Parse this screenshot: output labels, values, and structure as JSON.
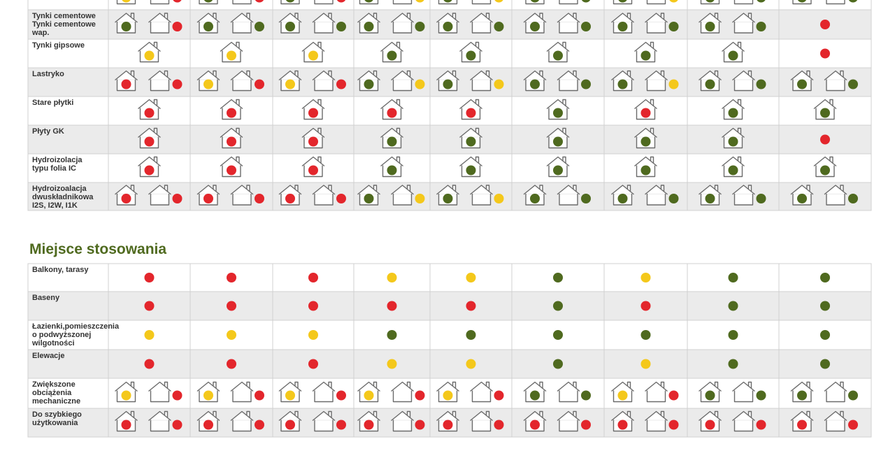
{
  "sections": [
    {
      "rows": [
        {
          "label": [],
          "cells": [
            {
              "in": "#f4c81b",
              "out": "#e3262c"
            },
            {
              "in": "#4f6a1f",
              "out": "#e3262c"
            },
            {
              "in": "#4f6a1f",
              "out": "#e3262c"
            },
            {
              "in": "#4f6a1f",
              "out": "#f4c81b"
            },
            {
              "in": "#4f6a1f",
              "out": "#f4c81b"
            },
            {
              "in": "#4f6a1f",
              "out": "#4f6a1f"
            },
            {
              "in": "#4f6a1f",
              "out": "#f4c81b"
            },
            {
              "in": "#4f6a1f",
              "out": "#4f6a1f"
            },
            {
              "in": "#4f6a1f",
              "out": "#4f6a1f"
            }
          ]
        },
        {
          "label": [
            "Tynki cementowe",
            "Tynki cementowe",
            "wap."
          ],
          "cells": [
            {
              "in": "#4f6a1f",
              "out": "#e3262c"
            },
            {
              "in": "#4f6a1f",
              "out": "#4f6a1f"
            },
            {
              "in": "#4f6a1f",
              "out": "#4f6a1f"
            },
            {
              "in": "#4f6a1f",
              "out": "#4f6a1f"
            },
            {
              "in": "#4f6a1f",
              "out": "#4f6a1f"
            },
            {
              "in": "#4f6a1f",
              "out": "#4f6a1f"
            },
            {
              "in": "#4f6a1f",
              "out": "#4f6a1f"
            },
            {
              "in": "#4f6a1f",
              "out": "#4f6a1f"
            },
            {
              "dot": "#e3262c"
            }
          ]
        },
        {
          "label": [
            "Tynki gipsowe"
          ],
          "cells": [
            {
              "in": "#f4c81b"
            },
            {
              "in": "#f4c81b"
            },
            {
              "in": "#f4c81b"
            },
            {
              "in": "#4f6a1f"
            },
            {
              "in": "#4f6a1f"
            },
            {
              "in": "#4f6a1f"
            },
            {
              "in": "#4f6a1f"
            },
            {
              "in": "#4f6a1f"
            },
            {
              "dot": "#e3262c"
            }
          ]
        },
        {
          "label": [
            "Lastryko"
          ],
          "cells": [
            {
              "in": "#e3262c",
              "out": "#e3262c"
            },
            {
              "in": "#f4c81b",
              "out": "#e3262c"
            },
            {
              "in": "#f4c81b",
              "out": "#e3262c"
            },
            {
              "in": "#4f6a1f",
              "out": "#f4c81b"
            },
            {
              "in": "#4f6a1f",
              "out": "#f4c81b"
            },
            {
              "in": "#4f6a1f",
              "out": "#4f6a1f"
            },
            {
              "in": "#4f6a1f",
              "out": "#f4c81b"
            },
            {
              "in": "#4f6a1f",
              "out": "#4f6a1f"
            },
            {
              "in": "#4f6a1f",
              "out": "#4f6a1f"
            }
          ]
        },
        {
          "label": [
            "Stare płytki"
          ],
          "cells": [
            {
              "in": "#e3262c"
            },
            {
              "in": "#e3262c"
            },
            {
              "in": "#e3262c"
            },
            {
              "in": "#e3262c"
            },
            {
              "in": "#e3262c"
            },
            {
              "in": "#4f6a1f"
            },
            {
              "in": "#e3262c"
            },
            {
              "in": "#4f6a1f"
            },
            {
              "in": "#4f6a1f"
            }
          ]
        },
        {
          "label": [
            "Płyty GK"
          ],
          "cells": [
            {
              "in": "#e3262c"
            },
            {
              "in": "#e3262c"
            },
            {
              "in": "#e3262c"
            },
            {
              "in": "#4f6a1f"
            },
            {
              "in": "#4f6a1f"
            },
            {
              "in": "#4f6a1f"
            },
            {
              "in": "#4f6a1f"
            },
            {
              "in": "#4f6a1f"
            },
            {
              "dot": "#e3262c"
            }
          ]
        },
        {
          "label": [
            "Hydroizolacja",
            "typu folia IC"
          ],
          "cells": [
            {
              "in": "#e3262c"
            },
            {
              "in": "#e3262c"
            },
            {
              "in": "#e3262c"
            },
            {
              "in": "#4f6a1f"
            },
            {
              "in": "#4f6a1f"
            },
            {
              "in": "#4f6a1f"
            },
            {
              "in": "#4f6a1f"
            },
            {
              "in": "#4f6a1f"
            },
            {
              "in": "#4f6a1f"
            }
          ]
        },
        {
          "label": [
            "Hydroizoalacja",
            "dwuskładnikowa",
            "I2S, I2W, I1K"
          ],
          "cells": [
            {
              "in": "#e3262c",
              "out": "#e3262c"
            },
            {
              "in": "#e3262c",
              "out": "#e3262c"
            },
            {
              "in": "#e3262c",
              "out": "#e3262c"
            },
            {
              "in": "#4f6a1f",
              "out": "#f4c81b"
            },
            {
              "in": "#4f6a1f",
              "out": "#f4c81b"
            },
            {
              "in": "#4f6a1f",
              "out": "#4f6a1f"
            },
            {
              "in": "#4f6a1f",
              "out": "#4f6a1f"
            },
            {
              "in": "#4f6a1f",
              "out": "#4f6a1f"
            },
            {
              "in": "#4f6a1f",
              "out": "#4f6a1f"
            }
          ]
        }
      ]
    },
    {
      "title": "Miejsce stosowania",
      "rows": [
        {
          "label": [
            "Balkony, tarasy"
          ],
          "cells": [
            {
              "dot": "#e3262c"
            },
            {
              "dot": "#e3262c"
            },
            {
              "dot": "#e3262c"
            },
            {
              "dot": "#f4c81b"
            },
            {
              "dot": "#f4c81b"
            },
            {
              "dot": "#4f6a1f"
            },
            {
              "dot": "#f4c81b"
            },
            {
              "dot": "#4f6a1f"
            },
            {
              "dot": "#4f6a1f"
            }
          ]
        },
        {
          "label": [
            "Baseny"
          ],
          "cells": [
            {
              "dot": "#e3262c"
            },
            {
              "dot": "#e3262c"
            },
            {
              "dot": "#e3262c"
            },
            {
              "dot": "#e3262c"
            },
            {
              "dot": "#e3262c"
            },
            {
              "dot": "#4f6a1f"
            },
            {
              "dot": "#e3262c"
            },
            {
              "dot": "#4f6a1f"
            },
            {
              "dot": "#4f6a1f"
            }
          ]
        },
        {
          "label": [
            "Łazienki,pomieszczenia",
            "o podwyższonej",
            "wilgotności"
          ],
          "cells": [
            {
              "dot": "#f4c81b"
            },
            {
              "dot": "#f4c81b"
            },
            {
              "dot": "#f4c81b"
            },
            {
              "dot": "#4f6a1f"
            },
            {
              "dot": "#4f6a1f"
            },
            {
              "dot": "#4f6a1f"
            },
            {
              "dot": "#4f6a1f"
            },
            {
              "dot": "#4f6a1f"
            },
            {
              "dot": "#4f6a1f"
            }
          ]
        },
        {
          "label": [
            "Elewacje"
          ],
          "cells": [
            {
              "dot": "#e3262c"
            },
            {
              "dot": "#e3262c"
            },
            {
              "dot": "#e3262c"
            },
            {
              "dot": "#f4c81b"
            },
            {
              "dot": "#f4c81b"
            },
            {
              "dot": "#4f6a1f"
            },
            {
              "dot": "#f4c81b"
            },
            {
              "dot": "#4f6a1f"
            },
            {
              "dot": "#4f6a1f"
            }
          ]
        },
        {
          "label": [
            "Zwiększone",
            "obciążenia",
            "mechaniczne"
          ],
          "cells": [
            {
              "in": "#f4c81b",
              "out": "#e3262c"
            },
            {
              "in": "#f4c81b",
              "out": "#e3262c"
            },
            {
              "in": "#f4c81b",
              "out": "#e3262c"
            },
            {
              "in": "#f4c81b",
              "out": "#e3262c"
            },
            {
              "in": "#f4c81b",
              "out": "#e3262c"
            },
            {
              "in": "#4f6a1f",
              "out": "#4f6a1f"
            },
            {
              "in": "#f4c81b",
              "out": "#e3262c"
            },
            {
              "in": "#4f6a1f",
              "out": "#4f6a1f"
            },
            {
              "in": "#4f6a1f",
              "out": "#4f6a1f"
            }
          ]
        },
        {
          "label": [
            "Do szybkiego",
            "użytkowania"
          ],
          "cells": [
            {
              "in": "#e3262c",
              "out": "#e3262c"
            },
            {
              "in": "#e3262c",
              "out": "#e3262c"
            },
            {
              "in": "#e3262c",
              "out": "#e3262c"
            },
            {
              "in": "#e3262c",
              "out": "#e3262c"
            },
            {
              "in": "#e3262c",
              "out": "#e3262c"
            },
            {
              "in": "#e3262c",
              "out": "#e3262c"
            },
            {
              "in": "#e3262c",
              "out": "#e3262c"
            },
            {
              "in": "#e3262c",
              "out": "#e3262c"
            },
            {
              "in": "#e3262c",
              "out": "#e3262c"
            }
          ]
        }
      ]
    }
  ]
}
